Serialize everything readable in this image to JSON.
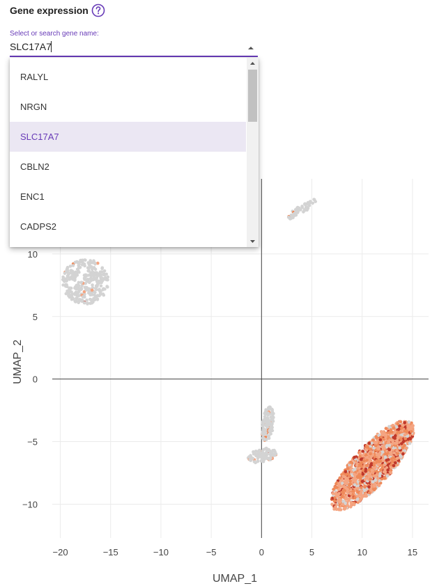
{
  "header": {
    "title": "Gene expression",
    "help_icon": "question-circle-icon"
  },
  "gene_select": {
    "label": "Select or search gene name:",
    "value": "SLC17A7",
    "selected": "SLC17A7",
    "options": [
      "RALYL",
      "NRGN",
      "SLC17A7",
      "CBLN2",
      "ENC1",
      "CADPS2"
    ]
  },
  "colors": {
    "accent": "#673ab7",
    "selected_bg": "#ebe7f3",
    "grey_point": "#d3d3d3",
    "low_expression": "#f4a582",
    "mid_expression": "#ef8a5a",
    "high_expression": "#c0392b"
  },
  "chart_data": {
    "type": "scatter",
    "xlabel": "UMAP_1",
    "ylabel": "UMAP_2",
    "xlim": [
      -20.8,
      16.6
    ],
    "ylim": [
      -12.7,
      16
    ],
    "x_ticks": [
      -20,
      -15,
      -10,
      -5,
      0,
      5,
      10,
      15
    ],
    "y_ticks": [
      -10,
      -5,
      0,
      5,
      10
    ],
    "x_tick_labels": [
      "−20",
      "−15",
      "−10",
      "−5",
      "0",
      "5",
      "10",
      "15"
    ],
    "y_tick_labels": [
      "−10",
      "−5",
      "0",
      "5",
      "10"
    ],
    "grid": true,
    "clusters": [
      {
        "name": "",
        "cx": -17.5,
        "cy": 7.8,
        "rx": 2.3,
        "ry": 1.8,
        "angle": 0,
        "count": 320,
        "expr": 0.03
      },
      {
        "name": "",
        "cx": 4.0,
        "cy": 13.6,
        "rx": 1.6,
        "ry": 0.35,
        "angle": 28,
        "count": 50,
        "expr": 0.05
      },
      {
        "name": "",
        "cx": 0.6,
        "cy": -3.6,
        "rx": 0.6,
        "ry": 1.4,
        "angle": -10,
        "count": 120,
        "expr": 0.08
      },
      {
        "name": "",
        "cx": 0.1,
        "cy": -6.1,
        "rx": 1.5,
        "ry": 0.55,
        "angle": 10,
        "count": 110,
        "expr": 0.12
      },
      {
        "name": "",
        "cx": 11.0,
        "cy": -6.9,
        "rx": 5.2,
        "ry": 1.7,
        "angle": 40,
        "count": 1600,
        "expr": 0.85
      }
    ]
  }
}
